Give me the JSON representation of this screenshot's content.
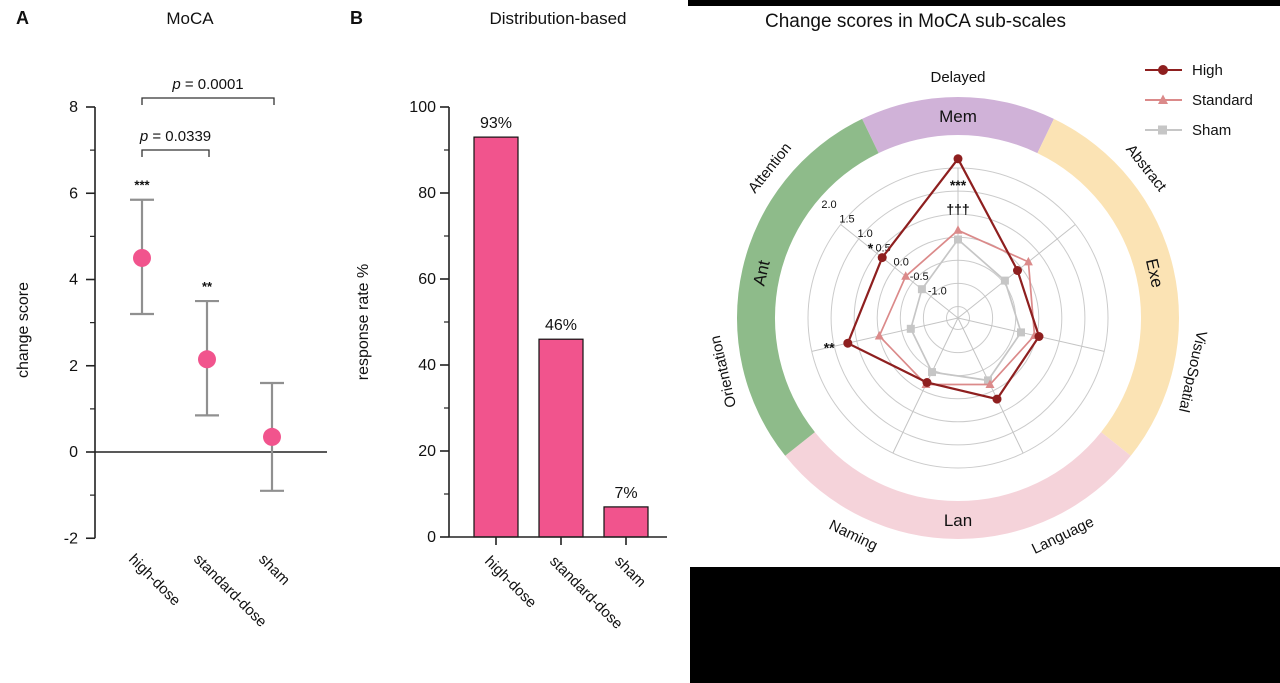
{
  "figure_titles": {
    "panel_a_letter": "A",
    "panel_a_title": "MoCA",
    "panel_b_letter": "B",
    "panel_b_title": "Distribution-based",
    "radar_title": "Change scores in MoCA sub-scales"
  },
  "chart_data": [
    {
      "id": "A",
      "type": "scatter",
      "title": "MoCA",
      "ylabel": "change score",
      "ylim": [
        -2,
        8
      ],
      "yticks": [
        -2,
        0,
        2,
        4,
        6,
        8
      ],
      "minor_yticks": [
        -1,
        1,
        3,
        5,
        7
      ],
      "categories": [
        "high-dose",
        "standard-dose",
        "sham"
      ],
      "values": [
        4.5,
        2.15,
        0.35
      ],
      "error_low": [
        3.2,
        0.85,
        -0.9
      ],
      "error_high": [
        5.85,
        3.5,
        1.6
      ],
      "sig_labels": [
        "***",
        "**",
        ""
      ],
      "comparisons": [
        {
          "label": "p = 0.0001",
          "from": 0,
          "to": 2
        },
        {
          "label": "p = 0.0339",
          "from": 0,
          "to": 1
        }
      ],
      "marker_color": "#F1548D",
      "error_color": "#909090"
    },
    {
      "id": "B",
      "type": "bar",
      "title": "Distribution-based",
      "ylabel": "response rate %",
      "ylim": [
        0,
        100
      ],
      "yticks": [
        0,
        20,
        40,
        60,
        80,
        100
      ],
      "minor_yticks": [
        10,
        30,
        50,
        70,
        90
      ],
      "categories": [
        "high-dose",
        "standard-dose",
        "sham"
      ],
      "values": [
        93,
        46,
        7
      ],
      "bar_labels": [
        "93%",
        "46%",
        "7%"
      ],
      "bar_color": "#F1548D"
    },
    {
      "id": "radar",
      "type": "radar",
      "title": "Change scores in MoCA sub-scales",
      "axes": [
        "Delayed",
        "Abstract",
        "VisuoSpatial",
        "Language",
        "Naming",
        "Orientation",
        "Attention"
      ],
      "scale": {
        "center": -1.25,
        "max": 2.0,
        "rings": [
          -1.0,
          -0.5,
          0.0,
          0.5,
          1.0,
          1.5,
          2.0
        ]
      },
      "ring_tick_labels": [
        "-1.0",
        "-0.5",
        "0.0",
        "0.5",
        "1.0",
        "1.5",
        "2.0"
      ],
      "series": [
        {
          "name": "High",
          "color": "#8E1F1F",
          "marker": "circle",
          "values": [
            2.2,
            0.4,
            0.55,
            0.7,
            0.3,
            1.2,
            0.85
          ]
        },
        {
          "name": "Standard",
          "color": "#DB8A8A",
          "marker": "triangle",
          "values": [
            0.65,
            0.7,
            0.45,
            0.35,
            0.35,
            0.5,
            0.2
          ]
        },
        {
          "name": "Sham",
          "color": "#C6C6C6",
          "marker": "square",
          "values": [
            0.45,
            0.05,
            0.15,
            0.25,
            0.05,
            -0.2,
            -0.25
          ]
        }
      ],
      "groups": [
        {
          "label": "Mem",
          "color": "#D0B2D8",
          "arc": [
            64.29,
            115.71
          ]
        },
        {
          "label": "Exe",
          "color": "#FBE3B4",
          "arc": [
            -38.57,
            64.29
          ]
        },
        {
          "label": "Lan",
          "color": "#F5D3DA",
          "arc": [
            -141.43,
            -38.57
          ]
        },
        {
          "label": "Ant",
          "color": "#8EBB8A",
          "arc": [
            115.71,
            218.57
          ]
        }
      ],
      "annotations": [
        {
          "text": "***",
          "axis": 0,
          "radial_offset": -26
        },
        {
          "text": "†††",
          "axis": 0,
          "radial_offset": -50
        },
        {
          "text": "*",
          "axis": 6,
          "radial_offset": 15
        },
        {
          "text": "**",
          "axis": 5,
          "radial_offset": 19
        }
      ],
      "legend": {
        "entries": [
          "High",
          "Standard",
          "Sham"
        ]
      }
    }
  ]
}
